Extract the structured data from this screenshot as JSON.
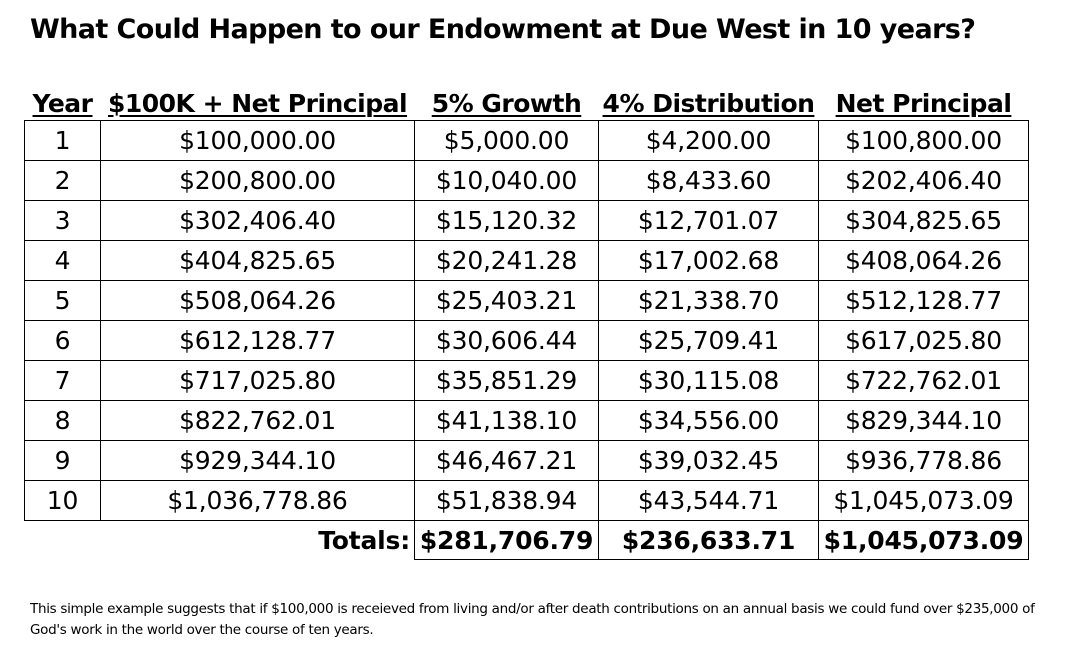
{
  "title": "What Could Happen to our Endowment at Due West in 10 years?",
  "table": {
    "headers": [
      "Year",
      "$100K + Net Principal",
      "5% Growth",
      "4% Distribution",
      "Net Principal"
    ],
    "rows": [
      [
        "1",
        "$100,000.00",
        "$5,000.00",
        "$4,200.00",
        "$100,800.00"
      ],
      [
        "2",
        "$200,800.00",
        "$10,040.00",
        "$8,433.60",
        "$202,406.40"
      ],
      [
        "3",
        "$302,406.40",
        "$15,120.32",
        "$12,701.07",
        "$304,825.65"
      ],
      [
        "4",
        "$404,825.65",
        "$20,241.28",
        "$17,002.68",
        "$408,064.26"
      ],
      [
        "5",
        "$508,064.26",
        "$25,403.21",
        "$21,338.70",
        "$512,128.77"
      ],
      [
        "6",
        "$612,128.77",
        "$30,606.44",
        "$25,709.41",
        "$617,025.80"
      ],
      [
        "7",
        "$717,025.80",
        "$35,851.29",
        "$30,115.08",
        "$722,762.01"
      ],
      [
        "8",
        "$822,762.01",
        "$41,138.10",
        "$34,556.00",
        "$829,344.10"
      ],
      [
        "9",
        "$929,344.10",
        "$46,467.21",
        "$39,032.45",
        "$936,778.86"
      ],
      [
        "10",
        "$1,036,778.86",
        "$51,838.94",
        "$43,544.71",
        "$1,045,073.09"
      ]
    ],
    "totals": {
      "label": "Totals:",
      "growth": "$281,706.79",
      "distribution": "$236,633.71",
      "net_principal": "$1,045,073.09"
    }
  },
  "footnote": "This simple example suggests that if $100,000 is receieved from living and/or after death contributions on an annual basis we could fund over $235,000 of God's work in the world over the course of ten years."
}
